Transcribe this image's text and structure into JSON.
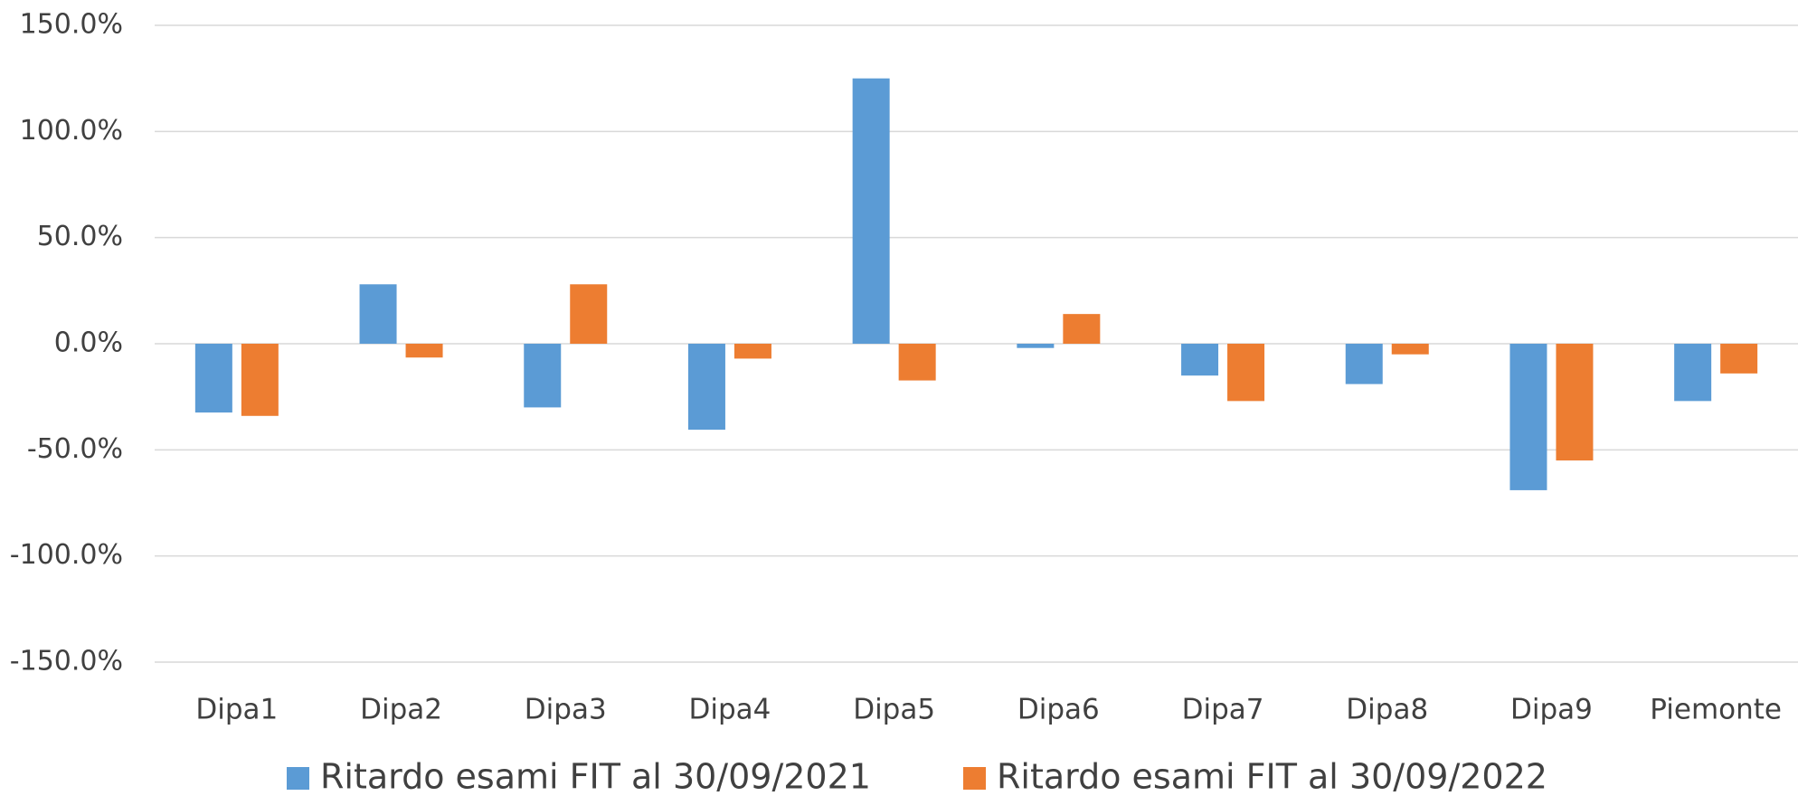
{
  "chart_data": {
    "type": "bar",
    "categories": [
      "Dipa1",
      "Dipa2",
      "Dipa3",
      "Dipa4",
      "Dipa5",
      "Dipa6",
      "Dipa7",
      "Dipa8",
      "Dipa9",
      "Piemonte"
    ],
    "series": [
      {
        "name": "Ritardo esami FIT al 30/09/2021",
        "color": "#5b9bd5",
        "values": [
          -32.4,
          28,
          -30,
          -40.5,
          125,
          -2,
          -15,
          -19,
          -69,
          -27
        ]
      },
      {
        "name": "Ritardo esami FIT al 30/09/2022",
        "color": "#ed7d31",
        "values": [
          -34,
          -6.5,
          28,
          -7,
          -17.3,
          14,
          -27,
          -5,
          -55,
          -14
        ]
      }
    ],
    "ylim": [
      -150,
      150
    ],
    "yticks": [
      {
        "value": -150,
        "label": "-150.0%"
      },
      {
        "value": -100,
        "label": "-100.0%"
      },
      {
        "value": -50,
        "label": "-50.0%"
      },
      {
        "value": 0,
        "label": "0.0%"
      },
      {
        "value": 50,
        "label": "50.0%"
      },
      {
        "value": 100,
        "label": "100.0%"
      },
      {
        "value": 150,
        "label": "150.0%"
      }
    ],
    "grid": true,
    "legend": "bottom"
  }
}
